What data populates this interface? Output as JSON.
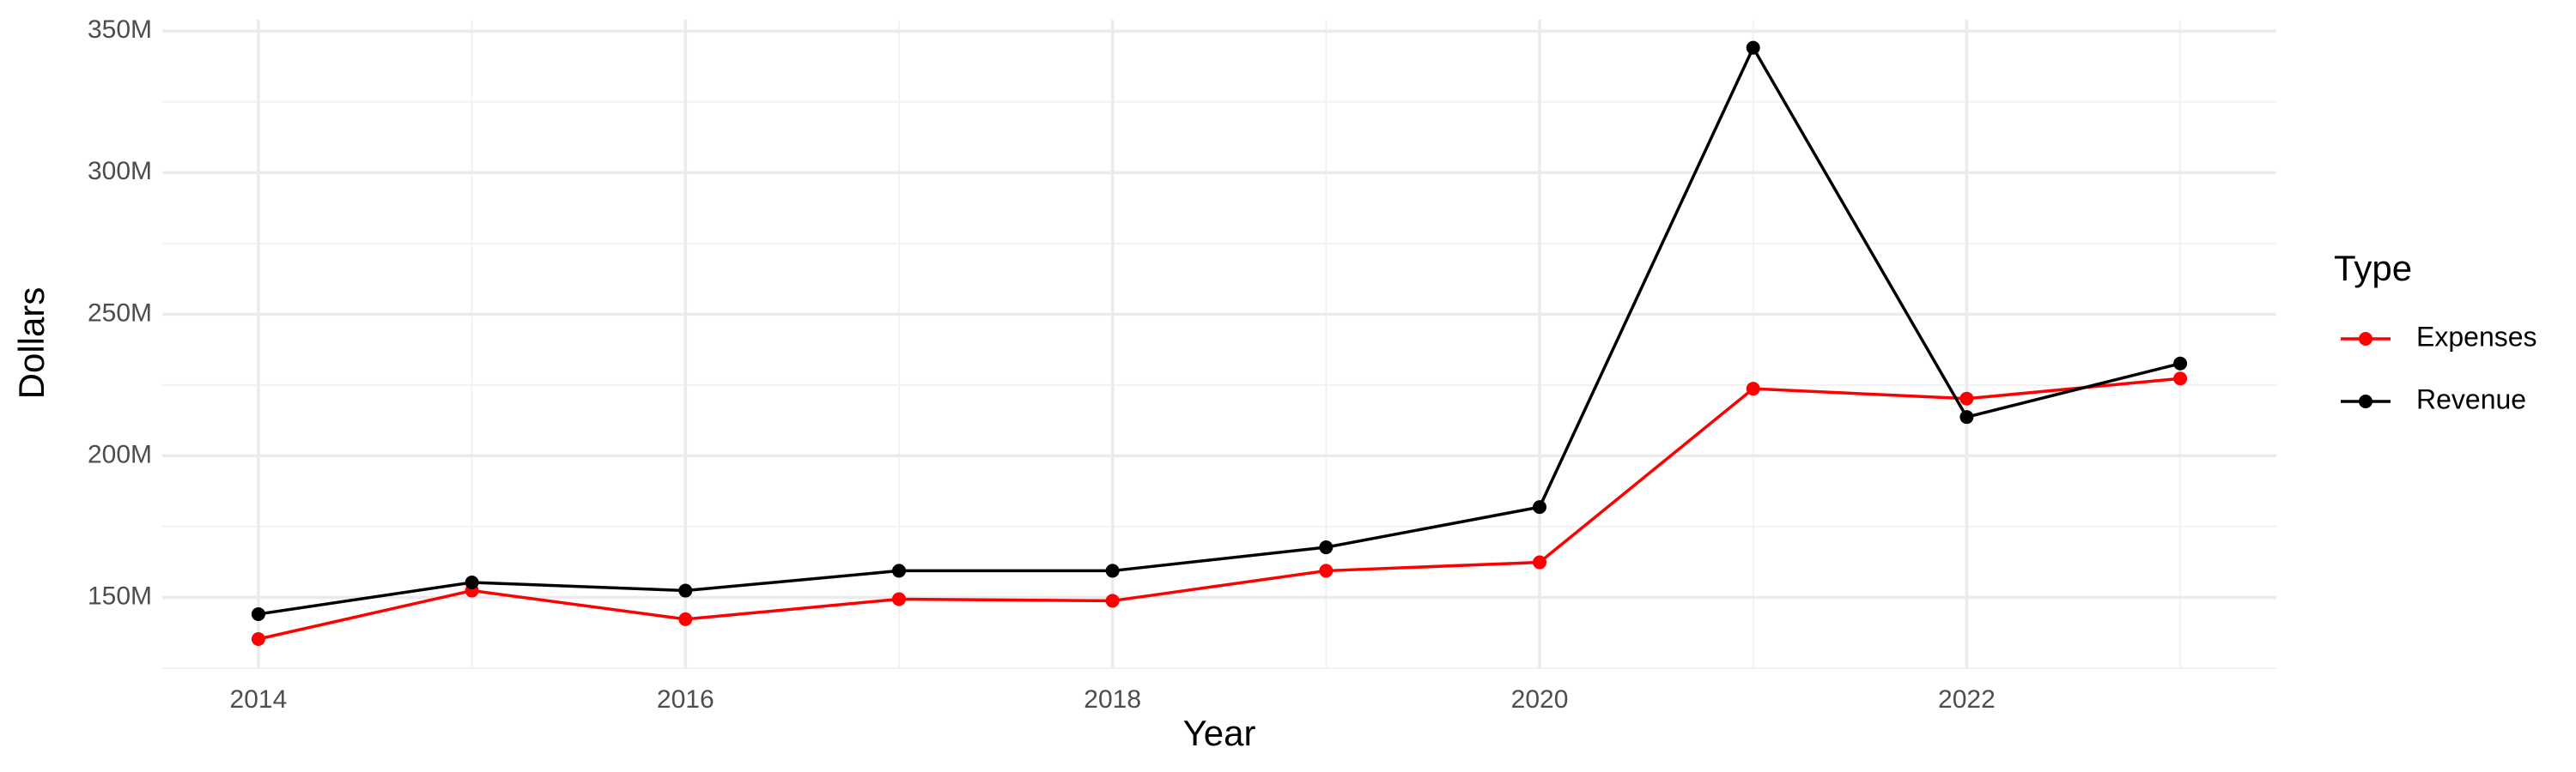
{
  "chart_data": {
    "type": "line",
    "x_label": "Year",
    "y_label": "Dollars",
    "x": [
      2014,
      2015,
      2016,
      2017,
      2018,
      2019,
      2020,
      2021,
      2022,
      2023
    ],
    "series": [
      {
        "name": "Expenses",
        "color": "#ff0000",
        "values": [
          135300000,
          152400000,
          142300000,
          149400000,
          148800000,
          159400000,
          162400000,
          223700000,
          220200000,
          227300000
        ]
      },
      {
        "name": "Revenue",
        "color": "#000000",
        "values": [
          144100000,
          155300000,
          152400000,
          159400000,
          159400000,
          167700000,
          181900000,
          344100000,
          213700000,
          232600000
        ]
      }
    ],
    "legend_title": "Type",
    "xlim": [
      2013.55,
      2023.45
    ],
    "xticks": [
      2014,
      2016,
      2018,
      2020,
      2022
    ],
    "ylim": [
      125000000,
      354000000
    ],
    "yticks": [
      {
        "value": 150000000,
        "label": "150M"
      },
      {
        "value": 200000000,
        "label": "200M"
      },
      {
        "value": 250000000,
        "label": "250M"
      },
      {
        "value": 300000000,
        "label": "300M"
      },
      {
        "value": 350000000,
        "label": "350M"
      }
    ],
    "grid": true,
    "legend_position": "right"
  }
}
